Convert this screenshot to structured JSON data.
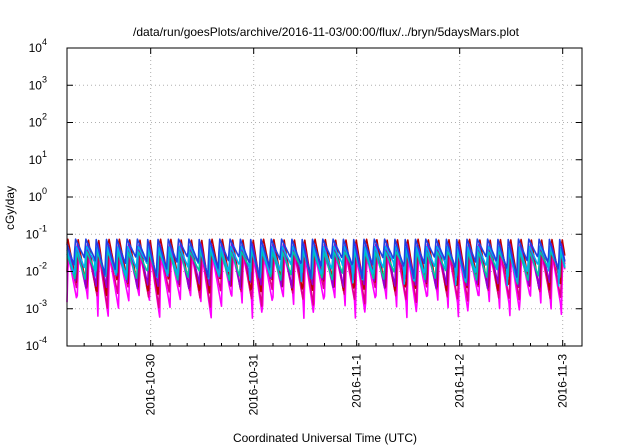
{
  "chart_data": {
    "type": "line",
    "title": "/data/run/goesPlots/archive/2016-11-03/00:00/flux/../bryn/5daysMars.plot",
    "xlabel": "Coordinated Universal Time (UTC)",
    "ylabel": "cGy/day",
    "yscale": "log",
    "ylim": [
      0.0001,
      10000
    ],
    "xlim": [
      "2016-10-29T04:30",
      "2016-11-03T00:30"
    ],
    "y_ticks": [
      {
        "base": "10",
        "exp": "-4"
      },
      {
        "base": "10",
        "exp": "-3"
      },
      {
        "base": "10",
        "exp": "-2"
      },
      {
        "base": "10",
        "exp": "-1"
      },
      {
        "base": "10",
        "exp": "0"
      },
      {
        "base": "10",
        "exp": "1"
      },
      {
        "base": "10",
        "exp": "2"
      },
      {
        "base": "10",
        "exp": "3"
      },
      {
        "base": "10",
        "exp": "4"
      }
    ],
    "x_ticks": [
      "2016-10-30",
      "2016-10-31",
      "2016-11-1",
      "2016-11-2",
      "2016-11-3"
    ],
    "grid": true,
    "sawtooth_period_hours": 2.4,
    "series": [
      {
        "color": "#ff00ff",
        "peak": 0.028,
        "trough": 0.0015
      },
      {
        "color": "#e0008a",
        "peak": 0.04,
        "trough": 0.0024
      },
      {
        "color": "#c00000",
        "peak": 0.09,
        "trough": 0.0035
      },
      {
        "color": "#9400d3",
        "peak": 0.06,
        "trough": 0.005
      },
      {
        "color": "#00c8a0",
        "peak": 0.035,
        "trough": 0.008
      },
      {
        "color": "#00b0f0",
        "peak": 0.05,
        "trough": 0.011
      },
      {
        "color": "#2040e0",
        "peak": 0.075,
        "trough": 0.016
      }
    ]
  }
}
